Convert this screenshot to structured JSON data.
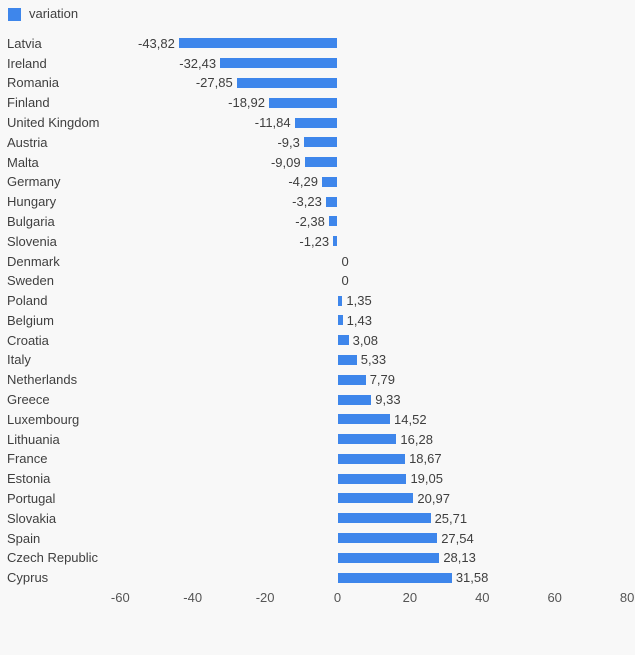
{
  "legend": {
    "label": "variation"
  },
  "colors": {
    "bar": "#3e86eb",
    "background": "#f8f8f8",
    "label_text": "#3f3f3f",
    "tick_text": "#555555"
  },
  "chart_data": {
    "type": "bar",
    "orientation": "horizontal",
    "title": "",
    "legend_label": "variation",
    "legend_position": "top-left",
    "grid": false,
    "categories": [
      "Latvia",
      "Ireland",
      "Romania",
      "Finland",
      "United Kingdom",
      "Austria",
      "Malta",
      "Germany",
      "Hungary",
      "Bulgaria",
      "Slovenia",
      "Denmark",
      "Sweden",
      "Poland",
      "Belgium",
      "Croatia",
      "Italy",
      "Netherlands",
      "Greece",
      "Luxembourg",
      "Lithuania",
      "France",
      "Estonia",
      "Portugal",
      "Slovakia",
      "Spain",
      "Czech Republic",
      "Cyprus"
    ],
    "values": [
      -43.82,
      -32.43,
      -27.85,
      -18.92,
      -11.84,
      -9.3,
      -9.09,
      -4.29,
      -3.23,
      -2.38,
      -1.23,
      0,
      0,
      1.35,
      1.43,
      3.08,
      5.33,
      7.79,
      9.33,
      14.52,
      16.28,
      18.67,
      19.05,
      20.97,
      25.71,
      27.54,
      28.13,
      31.58
    ],
    "value_labels": [
      "-43,82",
      "-32,43",
      "-27,85",
      "-18,92",
      "-11,84",
      "-9,3",
      "-9,09",
      "-4,29",
      "-3,23",
      "-2,38",
      "-1,23",
      "0",
      "0",
      "1,35",
      "1,43",
      "3,08",
      "5,33",
      "7,79",
      "9,33",
      "14,52",
      "16,28",
      "18,67",
      "19,05",
      "20,97",
      "25,71",
      "27,54",
      "28,13",
      "31,58"
    ],
    "x_ticks": [
      -60,
      -40,
      -20,
      0,
      20,
      40,
      60,
      80
    ],
    "x_tick_labels": [
      "-60",
      "-40",
      "-20",
      "0",
      "20",
      "40",
      "60",
      "80"
    ],
    "xlim": [
      -66,
      82
    ],
    "xlabel": "",
    "ylabel": ""
  }
}
